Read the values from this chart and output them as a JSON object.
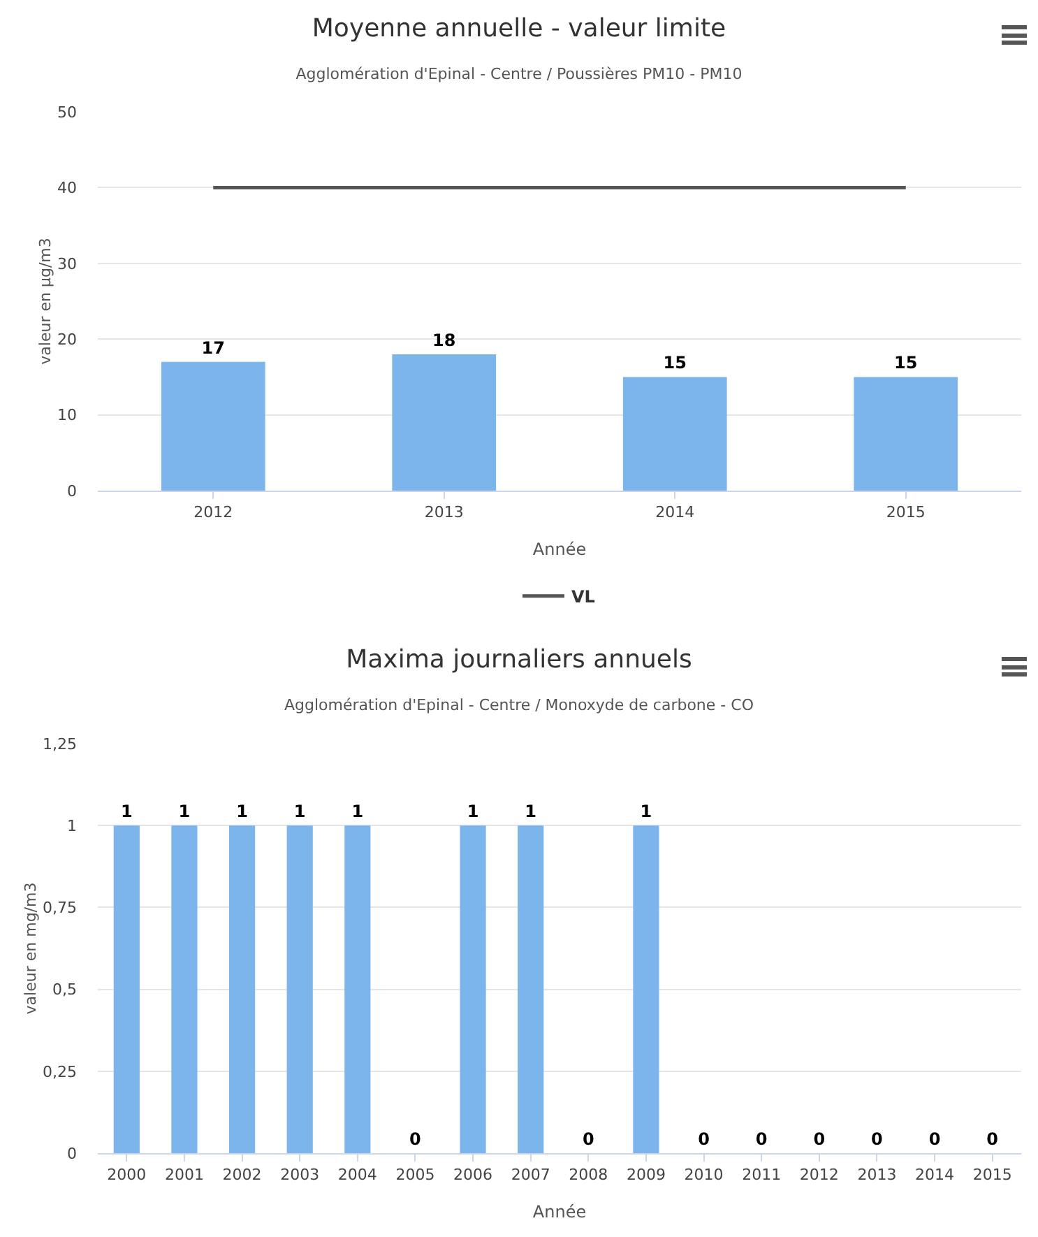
{
  "chart_data": [
    {
      "type": "bar",
      "title": "Moyenne annuelle - valeur limite",
      "subtitle": "Agglomération d'Epinal - Centre / Poussières PM10 - PM10",
      "xlabel": "Année",
      "ylabel": "valeur en µg/m3",
      "categories": [
        "2012",
        "2013",
        "2014",
        "2015"
      ],
      "series": [
        {
          "color": "#7cb5ec",
          "values": [
            17,
            18,
            15,
            15
          ],
          "value_labels": [
            "17",
            "18",
            "15",
            "15"
          ]
        },
        {
          "type": "line",
          "name": "VL",
          "color": "#555555",
          "values": [
            40,
            40,
            40,
            40
          ]
        }
      ],
      "ylim": [
        0,
        50
      ],
      "yticks": [
        0,
        10,
        20,
        30,
        40,
        50
      ],
      "grid": "y",
      "legend": "bottom",
      "marker": "none"
    },
    {
      "type": "bar",
      "title": "Maxima journaliers annuels",
      "subtitle": "Agglomération d'Epinal - Centre / Monoxyde de carbone - CO",
      "xlabel": "Année",
      "ylabel": "valeur en mg/m3",
      "categories": [
        "2000",
        "2001",
        "2002",
        "2003",
        "2004",
        "2005",
        "2006",
        "2007",
        "2008",
        "2009",
        "2010",
        "2011",
        "2012",
        "2013",
        "2014",
        "2015"
      ],
      "series": [
        {
          "color": "#7cb5ec",
          "values": [
            1,
            1,
            1,
            1,
            1,
            0,
            1,
            1,
            0,
            1,
            0,
            0,
            0,
            0,
            0,
            0
          ]
        }
      ],
      "ylim": [
        0,
        1.25
      ],
      "yticks": [
        0,
        {
          "value": 0.25,
          "label": "0,25"
        },
        {
          "value": 0.5,
          "label": "0,5"
        },
        {
          "value": 0.75,
          "label": "0,75"
        },
        1,
        {
          "value": 1.25,
          "label": "1,25"
        }
      ],
      "grid": "y",
      "data_labels": true
    }
  ]
}
